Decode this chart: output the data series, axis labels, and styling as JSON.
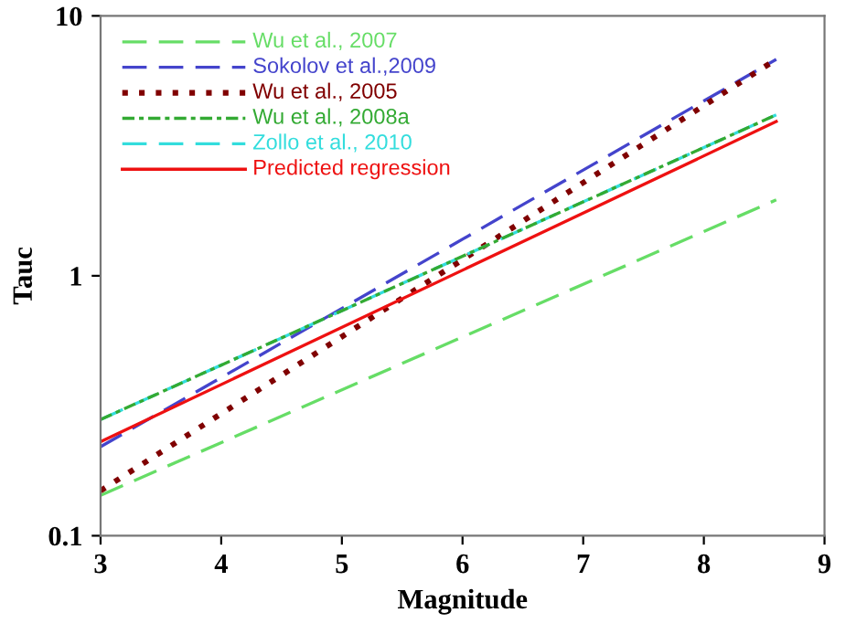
{
  "chart_data": {
    "type": "line",
    "xlabel": "Magnitude",
    "ylabel": "Tauc",
    "log": "y",
    "xlim": [
      3,
      9
    ],
    "ylim": [
      0.1,
      10
    ],
    "xticks": [
      3,
      4,
      5,
      6,
      7,
      8,
      9
    ],
    "yticks": [
      0.1,
      1,
      10
    ],
    "grid": false,
    "legend": "top left",
    "marker": "none",
    "x": [
      3,
      8.6
    ],
    "series": [
      {
        "name": "Wu et al., 2007",
        "color": "#66dd66",
        "line_style": "dashed",
        "values": [
          0.143,
          1.96
        ]
      },
      {
        "name": "Sokolov et al.,2009",
        "color": "#4444cc",
        "line_style": "dashed",
        "values": [
          0.22,
          6.8
        ]
      },
      {
        "name": "Wu et al., 2005",
        "color": "#800000",
        "line_style": "dotted",
        "values": [
          0.149,
          6.8
        ]
      },
      {
        "name": "Wu et al., 2008a",
        "color": "#33aa33",
        "line_style": "dashdot",
        "values": [
          0.28,
          4.16
        ]
      },
      {
        "name": "Zollo et al., 2010",
        "color": "#33dddd",
        "line_style": "dashed",
        "values": [
          0.28,
          4.16
        ]
      },
      {
        "name": "Predicted regression",
        "color": "#ee1111",
        "line_style": "solid",
        "values": [
          0.23,
          3.92
        ]
      }
    ]
  }
}
